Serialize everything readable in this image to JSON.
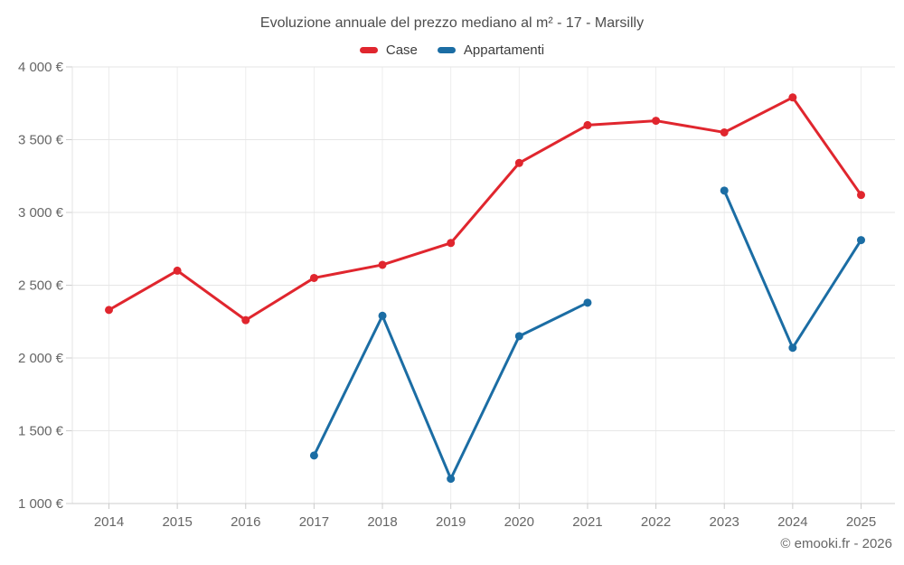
{
  "chart_data": {
    "type": "line",
    "title": "Evoluzione annuale del prezzo mediano al m² - 17 - Marsilly",
    "categories": [
      "2014",
      "2015",
      "2016",
      "2017",
      "2018",
      "2019",
      "2020",
      "2021",
      "2022",
      "2023",
      "2024",
      "2025"
    ],
    "series": [
      {
        "name": "Case",
        "color": "#e0262e",
        "values": [
          2330,
          2600,
          2260,
          2550,
          2640,
          2790,
          3340,
          3600,
          3630,
          3550,
          3790,
          3120
        ]
      },
      {
        "name": "Appartamenti",
        "color": "#1b6da4",
        "values": [
          null,
          null,
          null,
          1330,
          2290,
          1170,
          2150,
          2380,
          null,
          3150,
          2070,
          2810
        ]
      }
    ],
    "ylim": [
      1000,
      4000
    ],
    "yticks": [
      1000,
      1500,
      2000,
      2500,
      3000,
      3500,
      4000
    ],
    "ytick_labels": [
      "1 000 €",
      "1 500 €",
      "2 000 €",
      "2 500 €",
      "3 000 €",
      "3 500 €",
      "4 000 €"
    ],
    "legend_position": "top",
    "grid": true,
    "colors": {
      "grid_horizontal": "#e6e6e6",
      "grid_vertical": "#ededed",
      "axis_bottom": "#cccccc",
      "axis_left": "#e3e3e3",
      "tick": "#cccccc"
    }
  },
  "footer": {
    "copyright": "© emooki.fr - 2026"
  }
}
